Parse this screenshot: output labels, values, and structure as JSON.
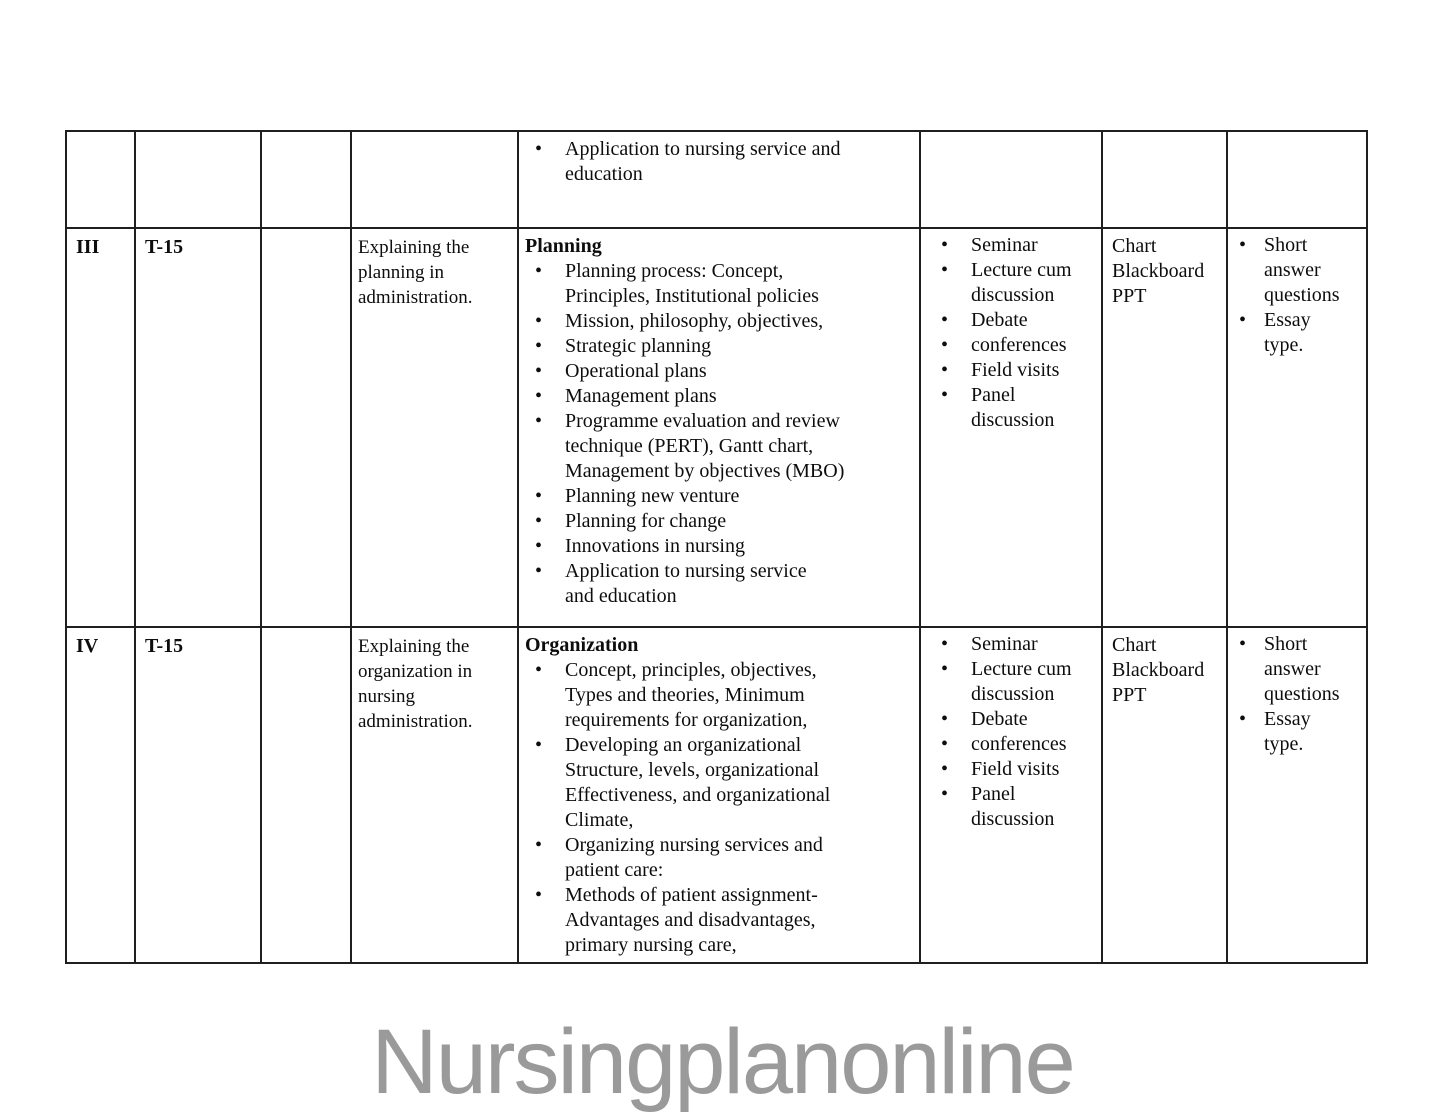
{
  "document": {
    "watermark": "Nursingplanonline",
    "colors": {
      "text": "#0d0d0d",
      "border": "#1f1f1f",
      "watermark": "#9a9a9a",
      "background": "#ffffff"
    }
  },
  "table": {
    "columns": [
      "unit",
      "hours",
      "empty",
      "objectives",
      "content",
      "teaching_methods",
      "av_aids",
      "assessment"
    ],
    "rows": [
      {
        "unit": "",
        "hours": "",
        "empty": "",
        "objectives": "",
        "content": {
          "title": "",
          "bullets": [
            "Application to nursing service and\neducation"
          ]
        },
        "teaching_methods": [],
        "av_aids": "",
        "assessment": []
      },
      {
        "unit": "III",
        "hours": "T-15",
        "empty": "",
        "objectives": "Explaining the\nplanning in\nadministration.",
        "content": {
          "title": "Planning",
          "bullets": [
            "Planning process: Concept,\nPrinciples, Institutional policies",
            "Mission, philosophy, objectives,",
            "Strategic planning",
            "Operational plans",
            "Management plans",
            "Programme evaluation and review\ntechnique (PERT), Gantt chart,\nManagement by objectives (MBO)",
            "Planning new venture",
            "Planning for change",
            "Innovations in nursing",
            "Application to nursing service\nand education"
          ]
        },
        "teaching_methods": [
          "Seminar",
          "Lecture cum\ndiscussion",
          "Debate",
          "conferences",
          "Field visits",
          "Panel\ndiscussion"
        ],
        "av_aids": "Chart\nBlackboard\nPPT",
        "assessment": [
          "Short\nanswer\nquestions",
          "Essay\ntype."
        ]
      },
      {
        "unit": "IV",
        "hours": "T-15",
        "empty": "",
        "objectives": "Explaining the\norganization in\nnursing\nadministration.",
        "content": {
          "title": "Organization",
          "bullets": [
            "Concept, principles, objectives,\nTypes and theories, Minimum\nrequirements for organization,",
            "Developing an organizational\nStructure, levels, organizational\nEffectiveness, and organizational\nClimate,",
            "Organizing nursing services and\npatient care:",
            "Methods of patient assignment-\nAdvantages and disadvantages,\nprimary nursing care,"
          ]
        },
        "teaching_methods": [
          "Seminar",
          "Lecture cum\ndiscussion",
          "Debate",
          "conferences",
          "Field visits",
          "Panel\ndiscussion"
        ],
        "av_aids": "Chart\nBlackboard\nPPT",
        "assessment": [
          "Short\nanswer\nquestions",
          "Essay\ntype."
        ]
      }
    ]
  }
}
